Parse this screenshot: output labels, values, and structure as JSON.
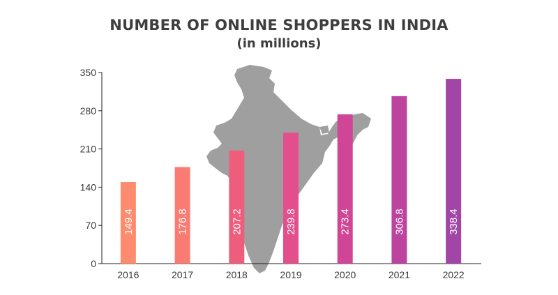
{
  "chart_data": {
    "type": "bar",
    "title": "NUMBER OF ONLINE SHOPPERS IN INDIA",
    "subtitle": "(in millions)",
    "xlabel": "",
    "ylabel": "",
    "categories": [
      "2016",
      "2017",
      "2018",
      "2019",
      "2020",
      "2021",
      "2022"
    ],
    "values": [
      149.4,
      176.8,
      207.2,
      239.8,
      273.4,
      306.8,
      338.4
    ],
    "data_labels": [
      "149.4",
      "176.8",
      "207.2",
      "239.8",
      "273.4",
      "306.8",
      "338.4"
    ],
    "y_ticks": [
      0,
      70,
      140,
      210,
      280,
      350
    ],
    "ylim": [
      0,
      350
    ],
    "grid": false,
    "legend": "none",
    "background_image": "india-map-silhouette",
    "bar_colors": [
      "#fd8c6e",
      "#f97b72",
      "#ee5e7c",
      "#e24f8b",
      "#d04595",
      "#bc449f",
      "#a146a6"
    ],
    "axis_color": "#222222",
    "map_color": "#9a9a9a"
  }
}
